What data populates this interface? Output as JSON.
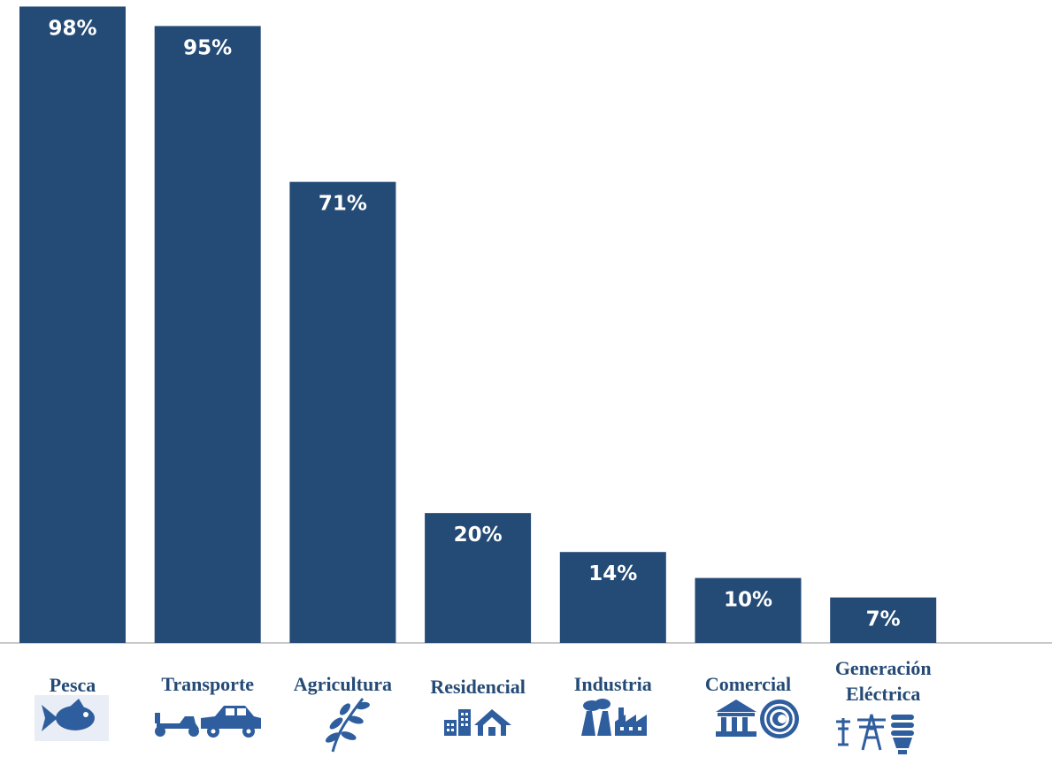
{
  "chart_data": {
    "type": "bar",
    "categories": [
      "Pesca",
      "Transporte",
      "Agricultura",
      "Residencial",
      "Industria",
      "Comercial",
      "Generación Eléctrica"
    ],
    "category_lines": [
      [
        "Pesca"
      ],
      [
        "Transporte"
      ],
      [
        "Agricultura"
      ],
      [
        "Residencial"
      ],
      [
        "Industria"
      ],
      [
        "Comercial"
      ],
      [
        "Generación",
        "Eléctrica"
      ]
    ],
    "values": [
      98,
      95,
      71,
      20,
      14,
      10,
      7
    ],
    "data_labels": [
      "98%",
      "95%",
      "71%",
      "20%",
      "14%",
      "10%",
      "7%"
    ],
    "icons": [
      "fish-icon",
      "motorbike-car-icon",
      "plant-branch-icon",
      "buildings-house-icon",
      "factory-icon",
      "bank-coin-icon",
      "power-tower-bulb-icon"
    ],
    "ylim": [
      0,
      100
    ],
    "grid": false,
    "legend": "none",
    "colors": {
      "bar": "#244a76",
      "label": "#244a76",
      "icon": "#2f5e9e",
      "value_text": "#ffffff",
      "baseline": "#c8c8c8"
    }
  }
}
